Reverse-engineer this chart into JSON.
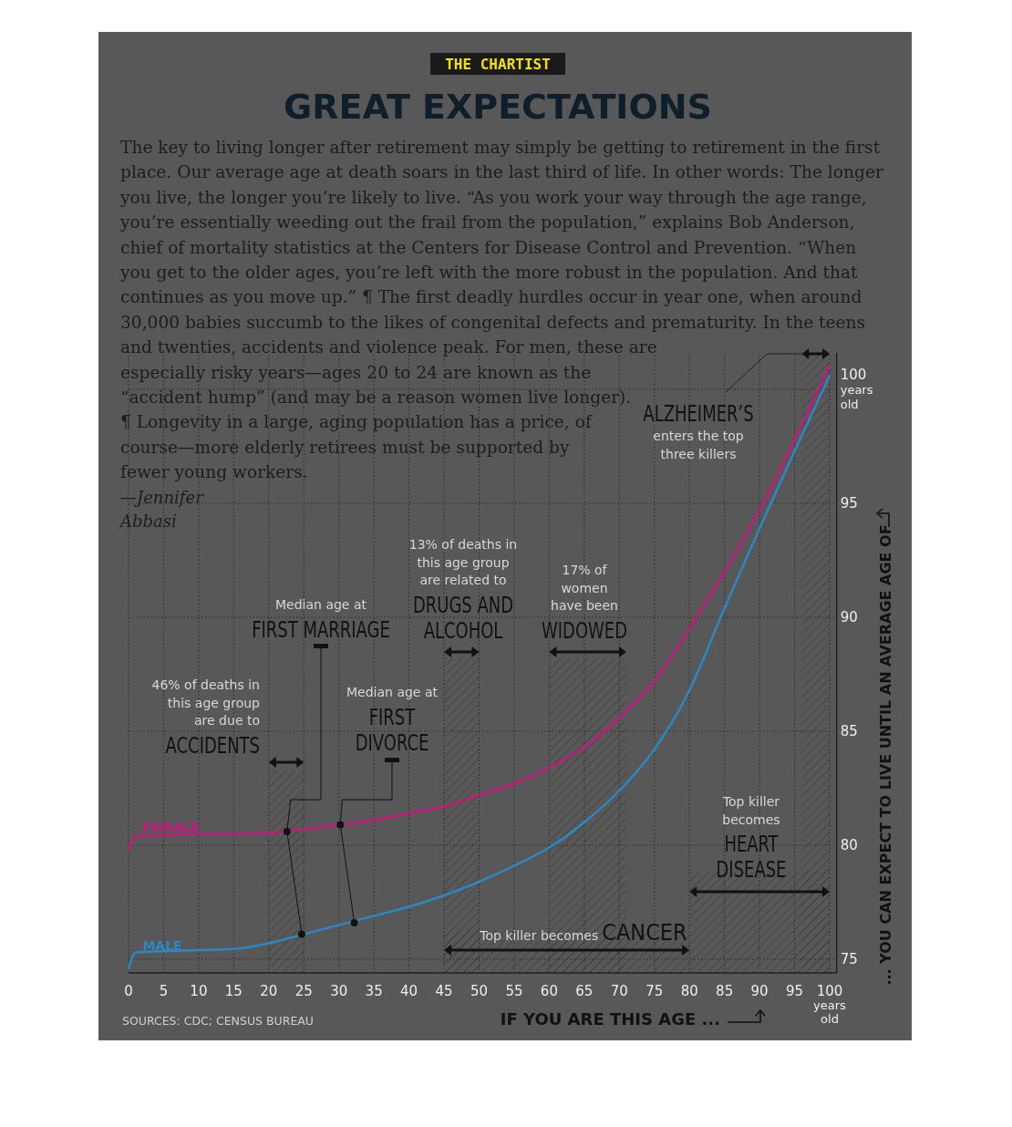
{
  "chart_data": {
    "type": "line",
    "title": "GREAT EXPECTATIONS",
    "subtitle": "The key to living longer after retirement may simply be getting to retirement in the first place. Our average age at death soars in the last third of life. In other words: The longer you live, the longer you’re likely to live. “As you work your way through the age range, you’re essentially weeding out the frail from the population,” explains Bob Anderson, chief of mortality statistics at the Centers for Disease Control and Prevention. “When you get to the older ages, you’re left with the more robust in the population. And that continues as you move up.” ¶ The first deadly hurdles occur in year one, when around 30,000 babies succumb to the likes of congenital defects and prematurity. In the teens and twenties, accidents and violence peak. For men, these are especially risky years—ages 20 to 24 are known as the “accident hump” (and may be a reason women live longer). ¶ Longevity in a large, aging population has a price, of course—more elderly retirees must be supported by fewer young workers.",
    "xlabel": "IF YOU ARE THIS AGE ...",
    "ylabel": "... YOU CAN EXPECT TO LIVE UNTIL AN AVERAGE AGE OF",
    "annotations": [
      "THE CHARTIST",
      "—Jennifer Abbasi",
      "Median age at\nFIRST MARRIAGE",
      {
        "text": "Median age at\nFIRST\nDIVORCE",
        "x": 32.2,
        "y": 76.6
      },
      "SOURCES: CDC; CENSUS BUREAU"
    ],
    "xlim": [
      0,
      101
    ],
    "ylim": [
      74.4,
      101.6
    ],
    "xticks": [
      0,
      5,
      10,
      15,
      20,
      25,
      30,
      35,
      40,
      45,
      50,
      55,
      60,
      65,
      70,
      75,
      80,
      85,
      90,
      95,
      {
        "value": 100,
        "label": "100\nyears\nold"
      }
    ],
    "yticks": [
      75,
      80,
      85,
      90,
      95,
      {
        "value": 100,
        "label": "100\nyears\nold"
      }
    ],
    "grid": true,
    "series": [
      {
        "name": "FEMALE",
        "color": "#c8187e",
        "x": [
          0,
          1,
          5,
          10,
          15,
          20,
          25,
          30,
          35,
          40,
          45,
          50,
          55,
          60,
          65,
          70,
          75,
          80,
          85,
          90,
          95,
          100
        ],
        "values": [
          79.8,
          80.4,
          80.45,
          80.5,
          80.5,
          80.55,
          80.7,
          80.9,
          81.1,
          81.4,
          81.7,
          82.2,
          82.7,
          83.4,
          84.3,
          85.6,
          87.2,
          89.5,
          92.0,
          94.7,
          97.8,
          101.0
        ]
      },
      {
        "name": "MALE",
        "color": "#2a88c4",
        "x": [
          0,
          1,
          5,
          10,
          15,
          20,
          25,
          30,
          35,
          40,
          45,
          50,
          55,
          60,
          65,
          70,
          75,
          80,
          85,
          90,
          95,
          100
        ],
        "values": [
          74.6,
          75.3,
          75.35,
          75.4,
          75.45,
          75.7,
          76.1,
          76.5,
          76.9,
          77.3,
          77.8,
          78.4,
          79.1,
          79.9,
          81.0,
          82.4,
          84.2,
          86.8,
          90.4,
          93.9,
          97.3,
          100.6
        ]
      },
      {
        "type": "scatter",
        "marker": "circle",
        "color": "#111111",
        "x": [
          22.6,
          24.7,
          30.2,
          32.2
        ],
        "values": [
          80.6,
          76.1,
          80.9,
          76.6
        ]
      }
    ],
    "bands": [
      {
        "axis": "x",
        "from": 20,
        "to": 25,
        "label": "46% of deaths in\nthis age group\nare due to\nACCIDENTS"
      },
      {
        "axis": "x",
        "from": 45,
        "to": 50,
        "label": "13% of deaths in\nthis age group\nare related to\nDRUGS AND\nALCOHOL"
      },
      {
        "axis": "x",
        "from": 60,
        "to": 71,
        "label": "17% of\nwomen\nhave been\nWIDOWED"
      },
      {
        "axis": "x",
        "from": 45,
        "to": 80,
        "label": "Top killer becomes\nCANCER"
      },
      {
        "axis": "x",
        "from": 80,
        "to": 100,
        "label": "Top killer\nbecomes\nHEART\nDISEASE"
      },
      {
        "axis": "x",
        "from": 96,
        "to": 100,
        "label": "ALZHEIMER’S\nenters the top\nthree killers"
      }
    ]
  }
}
